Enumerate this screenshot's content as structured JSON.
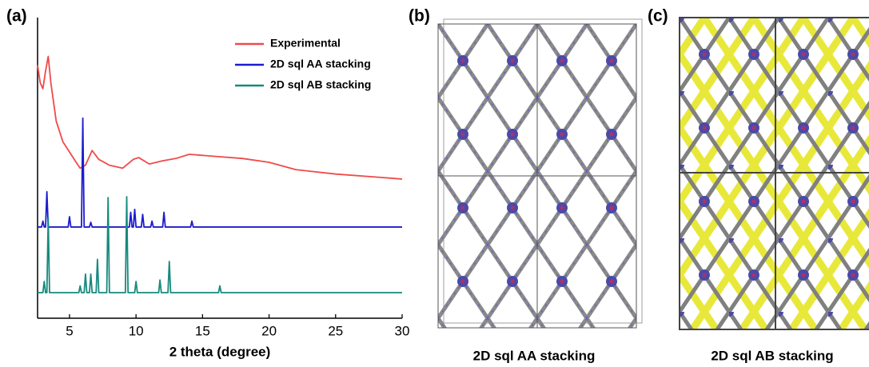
{
  "panels": {
    "a": "(a)",
    "b": "(b)",
    "c": "(c)"
  },
  "captions": [
    "2D sql AA stacking",
    "2D sql AB stacking"
  ],
  "chart_data": {
    "type": "line",
    "x_label": "2 theta (degree)",
    "xlim": [
      2.6,
      30
    ],
    "xticks": [
      5,
      10,
      15,
      20,
      25,
      30
    ],
    "ylim": [
      0,
      100
    ],
    "legend": "upper right",
    "series": [
      {
        "name": "Experimental",
        "color": "#f04a4a",
        "x": [
          2.6,
          2.8,
          3.0,
          3.2,
          3.4,
          3.6,
          4.0,
          4.5,
          5.0,
          5.5,
          5.8,
          6.2,
          6.7,
          7.2,
          8.0,
          9.0,
          9.8,
          10.2,
          11,
          12,
          13,
          14,
          16,
          18,
          20,
          22,
          25,
          28,
          30
        ],
        "values": [
          86,
          80,
          78,
          84,
          89,
          80,
          67,
          60,
          56.5,
          53,
          51,
          52,
          57,
          54,
          52,
          51,
          54,
          54.6,
          52.4,
          53.5,
          54.3,
          55.7,
          55,
          54.3,
          53,
          50.5,
          49,
          48,
          47.3
        ]
      },
      {
        "name": "2D sql AA stacking",
        "color": "#1c1ccf",
        "x": [
          2.6,
          2.9,
          3.0,
          3.1,
          3.2,
          3.3,
          3.4,
          4.9,
          5.0,
          5.1,
          5.9,
          6.0,
          6.1,
          6.5,
          6.6,
          6.7,
          9.5,
          9.6,
          9.7,
          9.8,
          9.9,
          10.0,
          10.4,
          10.5,
          10.6,
          11.1,
          11.2,
          11.3,
          12.0,
          12.1,
          12.2,
          14.1,
          14.2,
          14.3,
          30
        ],
        "values": [
          31,
          31,
          33,
          31,
          31,
          43,
          31,
          31,
          34.5,
          31,
          31,
          68,
          31,
          31,
          32.6,
          31,
          31,
          36,
          31,
          31,
          37,
          31,
          31,
          35.3,
          31,
          31,
          33,
          31,
          31,
          36,
          31,
          31,
          33,
          31,
          31
        ]
      },
      {
        "name": "2D sql AB stacking",
        "color": "#178a7e",
        "x": [
          2.6,
          3.0,
          3.1,
          3.2,
          3.3,
          3.4,
          3.5,
          5.7,
          5.8,
          5.9,
          6.1,
          6.2,
          6.3,
          6.5,
          6.6,
          6.7,
          7.0,
          7.1,
          7.2,
          7.8,
          7.9,
          8.0,
          9.2,
          9.3,
          9.4,
          9.9,
          10.0,
          10.1,
          11.7,
          11.8,
          11.9,
          12.4,
          12.5,
          12.6,
          16.2,
          16.3,
          16.4,
          30
        ],
        "values": [
          8.7,
          8.7,
          12.5,
          8.7,
          8.7,
          34,
          8.7,
          8.7,
          11,
          8.7,
          8.7,
          15,
          8.7,
          8.7,
          15,
          8.7,
          8.7,
          20,
          8.7,
          8.7,
          41,
          8.7,
          8.7,
          41.3,
          8.7,
          8.7,
          12.5,
          8.7,
          8.7,
          13,
          8.7,
          8.7,
          19.3,
          8.7,
          8.7,
          11,
          8.7,
          8.7
        ]
      }
    ]
  }
}
